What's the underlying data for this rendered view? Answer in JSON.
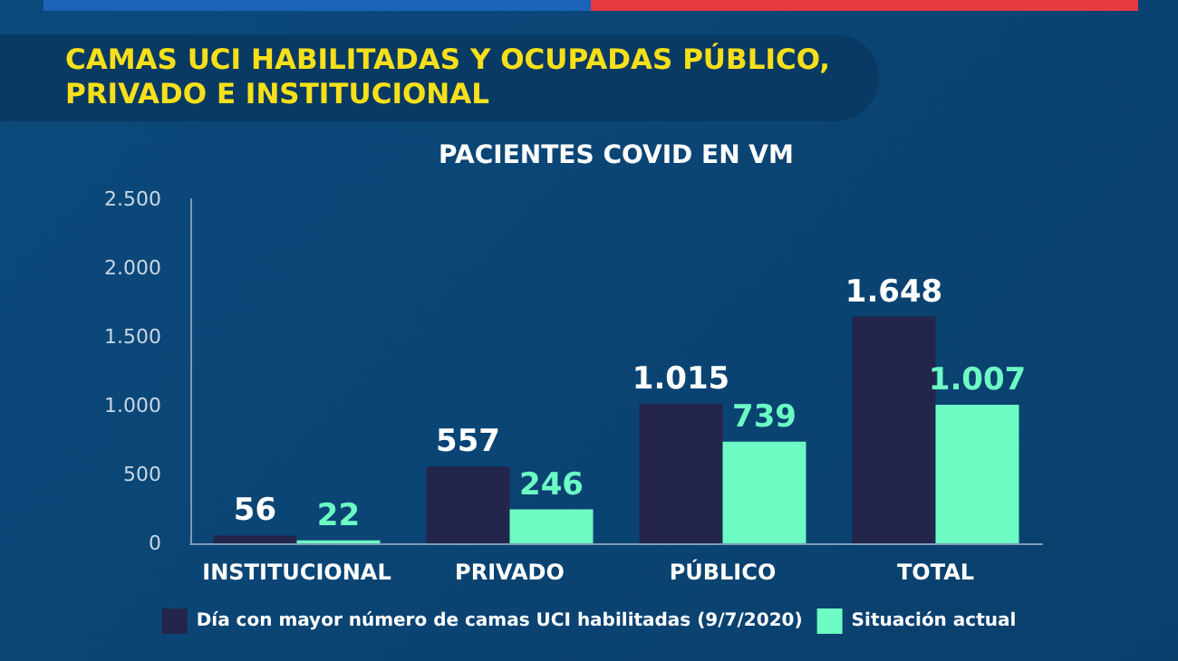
{
  "chart_data": {
    "type": "bar",
    "title": "CAMAS UCI HABILITADAS Y OCUPADAS PÚBLICO, PRIVADO E INSTITUCIONAL",
    "subtitle": "PACIENTES COVID EN VM",
    "categories": [
      "INSTITUCIONAL",
      "PRIVADO",
      "PÚBLICO",
      "TOTAL"
    ],
    "series": [
      {
        "name": "Día con mayor número de camas UCI habilitadas (9/7/2020)",
        "color": "#23264a",
        "values": [
          56,
          557,
          1015,
          1648
        ],
        "value_labels": [
          "56",
          "557",
          "1.015",
          "1.648"
        ]
      },
      {
        "name": "Situación actual",
        "color": "#6cfcc4",
        "values": [
          22,
          246,
          739,
          1007
        ],
        "value_labels": [
          "22",
          "246",
          "739",
          "1.007"
        ]
      }
    ],
    "ylim": [
      0,
      2500
    ],
    "yticks": [
      {
        "value": 0,
        "label": "0"
      },
      {
        "value": 500,
        "label": "500"
      },
      {
        "value": 1000,
        "label": "1.000"
      },
      {
        "value": 1500,
        "label": "1.500"
      },
      {
        "value": 2000,
        "label": "2.000"
      },
      {
        "value": 2500,
        "label": "2.500"
      }
    ],
    "grid": false,
    "legend": "bottom"
  }
}
